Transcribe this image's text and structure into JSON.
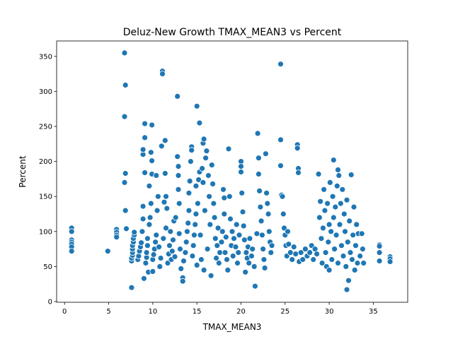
{
  "chart_data": {
    "type": "scatter",
    "title": "Deluz-New Growth TMAX_MEAN3 vs Percent",
    "xlabel": "TMAX_MEAN3",
    "ylabel": "Percent",
    "xlim": [
      -0.9,
      38.9
    ],
    "ylim": [
      -1,
      372
    ],
    "xticks": [
      0,
      5,
      10,
      15,
      20,
      25,
      30,
      35
    ],
    "yticks": [
      0,
      50,
      100,
      150,
      200,
      250,
      300,
      350
    ],
    "grid": false,
    "marker_color": "#1f77b4",
    "marker_edge": "#ffffff",
    "points": [
      [
        0.8,
        105
      ],
      [
        0.8,
        100
      ],
      [
        0.8,
        88
      ],
      [
        0.8,
        85
      ],
      [
        0.8,
        82
      ],
      [
        0.8,
        78
      ],
      [
        0.8,
        72
      ],
      [
        4.9,
        72
      ],
      [
        5.9,
        103
      ],
      [
        5.9,
        99
      ],
      [
        5.9,
        95
      ],
      [
        5.9,
        92
      ],
      [
        6.8,
        355
      ],
      [
        6.9,
        309
      ],
      [
        6.8,
        264
      ],
      [
        6.9,
        183
      ],
      [
        6.8,
        170
      ],
      [
        6.9,
        130
      ],
      [
        7.0,
        104
      ],
      [
        7.6,
        20
      ],
      [
        7.6,
        58
      ],
      [
        7.6,
        62
      ],
      [
        7.7,
        66
      ],
      [
        7.7,
        70
      ],
      [
        7.7,
        75
      ],
      [
        7.7,
        80
      ],
      [
        7.8,
        85
      ],
      [
        7.8,
        90
      ],
      [
        7.9,
        95
      ],
      [
        7.9,
        99
      ],
      [
        8.3,
        60
      ],
      [
        8.4,
        65
      ],
      [
        8.5,
        72
      ],
      [
        8.6,
        78
      ],
      [
        8.7,
        84
      ],
      [
        8.8,
        100
      ],
      [
        8.9,
        118
      ],
      [
        8.9,
        136
      ],
      [
        8.9,
        210
      ],
      [
        8.9,
        217
      ],
      [
        9.0,
        33
      ],
      [
        9.1,
        184
      ],
      [
        9.1,
        234
      ],
      [
        9.1,
        254
      ],
      [
        9.2,
        55
      ],
      [
        9.3,
        63
      ],
      [
        9.3,
        70
      ],
      [
        9.4,
        80
      ],
      [
        9.4,
        90
      ],
      [
        9.5,
        42
      ],
      [
        9.6,
        165
      ],
      [
        9.6,
        110
      ],
      [
        9.7,
        120
      ],
      [
        9.8,
        140
      ],
      [
        9.8,
        213
      ],
      [
        9.9,
        201
      ],
      [
        9.9,
        252
      ],
      [
        9.9,
        182
      ],
      [
        10.0,
        43
      ],
      [
        10.0,
        60
      ],
      [
        10.1,
        67
      ],
      [
        10.2,
        75
      ],
      [
        10.3,
        85
      ],
      [
        10.4,
        95
      ],
      [
        10.4,
        180
      ],
      [
        10.5,
        130
      ],
      [
        10.6,
        150
      ],
      [
        10.7,
        78
      ],
      [
        10.8,
        50
      ],
      [
        10.9,
        62
      ],
      [
        11.0,
        222
      ],
      [
        11.1,
        329
      ],
      [
        11.1,
        325
      ],
      [
        11.2,
        90
      ],
      [
        11.3,
        142
      ],
      [
        11.4,
        230
      ],
      [
        11.4,
        183
      ],
      [
        11.5,
        150
      ],
      [
        11.5,
        105
      ],
      [
        11.6,
        133
      ],
      [
        11.7,
        55
      ],
      [
        11.8,
        68
      ],
      [
        11.9,
        80
      ],
      [
        12.0,
        100
      ],
      [
        12.1,
        60
      ],
      [
        12.2,
        72
      ],
      [
        12.3,
        88
      ],
      [
        12.4,
        115
      ],
      [
        12.5,
        64
      ],
      [
        12.6,
        120
      ],
      [
        12.8,
        293
      ],
      [
        12.8,
        207
      ],
      [
        12.9,
        193
      ],
      [
        12.9,
        180
      ],
      [
        12.9,
        160
      ],
      [
        13.0,
        140
      ],
      [
        13.0,
        97
      ],
      [
        13.1,
        75
      ],
      [
        13.2,
        47
      ],
      [
        13.4,
        34
      ],
      [
        13.4,
        29
      ],
      [
        13.5,
        58
      ],
      [
        13.7,
        70
      ],
      [
        13.8,
        85
      ],
      [
        13.9,
        100
      ],
      [
        14.0,
        112
      ],
      [
        14.1,
        130
      ],
      [
        14.1,
        155
      ],
      [
        14.2,
        172
      ],
      [
        14.3,
        200
      ],
      [
        14.4,
        221
      ],
      [
        14.4,
        216
      ],
      [
        14.5,
        65
      ],
      [
        14.6,
        80
      ],
      [
        14.7,
        95
      ],
      [
        14.8,
        110
      ],
      [
        14.9,
        125
      ],
      [
        14.9,
        165
      ],
      [
        15.0,
        279
      ],
      [
        15.0,
        52
      ],
      [
        15.1,
        140
      ],
      [
        15.2,
        174
      ],
      [
        15.3,
        255
      ],
      [
        15.3,
        185
      ],
      [
        15.4,
        95
      ],
      [
        15.5,
        60
      ],
      [
        15.6,
        190
      ],
      [
        15.7,
        226
      ],
      [
        15.7,
        170
      ],
      [
        15.8,
        232
      ],
      [
        15.8,
        45
      ],
      [
        15.9,
        130
      ],
      [
        16.0,
        205
      ],
      [
        16.1,
        215
      ],
      [
        16.2,
        75
      ],
      [
        16.3,
        180
      ],
      [
        16.4,
        150
      ],
      [
        16.5,
        110
      ],
      [
        16.6,
        37
      ],
      [
        16.7,
        195
      ],
      [
        16.8,
        168
      ],
      [
        16.9,
        140
      ],
      [
        17.0,
        120
      ],
      [
        17.1,
        90
      ],
      [
        17.2,
        62
      ],
      [
        17.3,
        80
      ],
      [
        17.4,
        105
      ],
      [
        17.5,
        55
      ],
      [
        17.6,
        70
      ],
      [
        17.8,
        85
      ],
      [
        17.9,
        100
      ],
      [
        18.0,
        160
      ],
      [
        18.1,
        125
      ],
      [
        18.1,
        148
      ],
      [
        18.2,
        70
      ],
      [
        18.3,
        92
      ],
      [
        18.4,
        60
      ],
      [
        18.5,
        45
      ],
      [
        18.6,
        218
      ],
      [
        18.7,
        150
      ],
      [
        18.8,
        118
      ],
      [
        18.9,
        80
      ],
      [
        19.0,
        100
      ],
      [
        19.1,
        65
      ],
      [
        19.2,
        90
      ],
      [
        19.4,
        78
      ],
      [
        19.5,
        110
      ],
      [
        19.6,
        55
      ],
      [
        19.7,
        70
      ],
      [
        19.8,
        95
      ],
      [
        20.0,
        200
      ],
      [
        20.0,
        193
      ],
      [
        20.0,
        185
      ],
      [
        20.1,
        155
      ],
      [
        20.2,
        128
      ],
      [
        20.3,
        108
      ],
      [
        20.4,
        88
      ],
      [
        20.5,
        42
      ],
      [
        20.6,
        70
      ],
      [
        20.7,
        62
      ],
      [
        20.8,
        78
      ],
      [
        20.9,
        55
      ],
      [
        21.0,
        90
      ],
      [
        21.2,
        65
      ],
      [
        21.3,
        75
      ],
      [
        21.5,
        50
      ],
      [
        21.6,
        22
      ],
      [
        21.8,
        97
      ],
      [
        21.9,
        240
      ],
      [
        22.0,
        205
      ],
      [
        22.0,
        182
      ],
      [
        22.1,
        158
      ],
      [
        22.2,
        135
      ],
      [
        22.3,
        115
      ],
      [
        22.4,
        95
      ],
      [
        22.5,
        75
      ],
      [
        22.6,
        60
      ],
      [
        22.7,
        48
      ],
      [
        22.8,
        211
      ],
      [
        22.9,
        155
      ],
      [
        23.0,
        140
      ],
      [
        23.1,
        125
      ],
      [
        23.2,
        100
      ],
      [
        23.3,
        85
      ],
      [
        23.4,
        70
      ],
      [
        23.5,
        80
      ],
      [
        24.5,
        339
      ],
      [
        24.5,
        231
      ],
      [
        24.5,
        194
      ],
      [
        24.6,
        152
      ],
      [
        24.7,
        150
      ],
      [
        24.8,
        125
      ],
      [
        24.9,
        105
      ],
      [
        25.0,
        95
      ],
      [
        25.1,
        80
      ],
      [
        25.2,
        65
      ],
      [
        25.3,
        100
      ],
      [
        25.4,
        82
      ],
      [
        25.6,
        70
      ],
      [
        25.8,
        60
      ],
      [
        26.0,
        78
      ],
      [
        26.2,
        68
      ],
      [
        26.4,
        224
      ],
      [
        26.4,
        219
      ],
      [
        26.5,
        190
      ],
      [
        26.5,
        184
      ],
      [
        26.6,
        57
      ],
      [
        26.8,
        70
      ],
      [
        27.0,
        60
      ],
      [
        27.3,
        75
      ],
      [
        27.5,
        65
      ],
      [
        27.8,
        70
      ],
      [
        28.0,
        80
      ],
      [
        28.2,
        60
      ],
      [
        28.4,
        75
      ],
      [
        28.6,
        68
      ],
      [
        28.8,
        182
      ],
      [
        28.9,
        120
      ],
      [
        29.0,
        143
      ],
      [
        29.1,
        90
      ],
      [
        29.2,
        55
      ],
      [
        29.3,
        105
      ],
      [
        29.4,
        160
      ],
      [
        29.5,
        130
      ],
      [
        29.6,
        70
      ],
      [
        29.7,
        50
      ],
      [
        29.8,
        140
      ],
      [
        29.9,
        85
      ],
      [
        30.0,
        110
      ],
      [
        30.0,
        45
      ],
      [
        30.1,
        170
      ],
      [
        30.2,
        100
      ],
      [
        30.3,
        60
      ],
      [
        30.4,
        150
      ],
      [
        30.5,
        120
      ],
      [
        30.5,
        202
      ],
      [
        30.6,
        75
      ],
      [
        30.7,
        135
      ],
      [
        30.8,
        95
      ],
      [
        30.9,
        165
      ],
      [
        31.0,
        188
      ],
      [
        31.0,
        55
      ],
      [
        31.1,
        180
      ],
      [
        31.2,
        110
      ],
      [
        31.3,
        140
      ],
      [
        31.4,
        80
      ],
      [
        31.5,
        160
      ],
      [
        31.6,
        65
      ],
      [
        31.7,
        125
      ],
      [
        31.8,
        100
      ],
      [
        31.9,
        50
      ],
      [
        32.0,
        17
      ],
      [
        32.0,
        145
      ],
      [
        32.1,
        85
      ],
      [
        32.2,
        30
      ],
      [
        32.3,
        115
      ],
      [
        32.4,
        70
      ],
      [
        32.5,
        181
      ],
      [
        32.6,
        60
      ],
      [
        32.7,
        95
      ],
      [
        32.8,
        135
      ],
      [
        32.9,
        45
      ],
      [
        33.0,
        80
      ],
      [
        33.1,
        110
      ],
      [
        33.2,
        55
      ],
      [
        33.3,
        97
      ],
      [
        33.5,
        65
      ],
      [
        33.7,
        97
      ],
      [
        33.8,
        75
      ],
      [
        33.9,
        55
      ],
      [
        35.7,
        81
      ],
      [
        35.7,
        79
      ],
      [
        35.7,
        70
      ],
      [
        35.7,
        58
      ],
      [
        36.9,
        64
      ],
      [
        36.9,
        61
      ],
      [
        36.9,
        57
      ]
    ]
  }
}
